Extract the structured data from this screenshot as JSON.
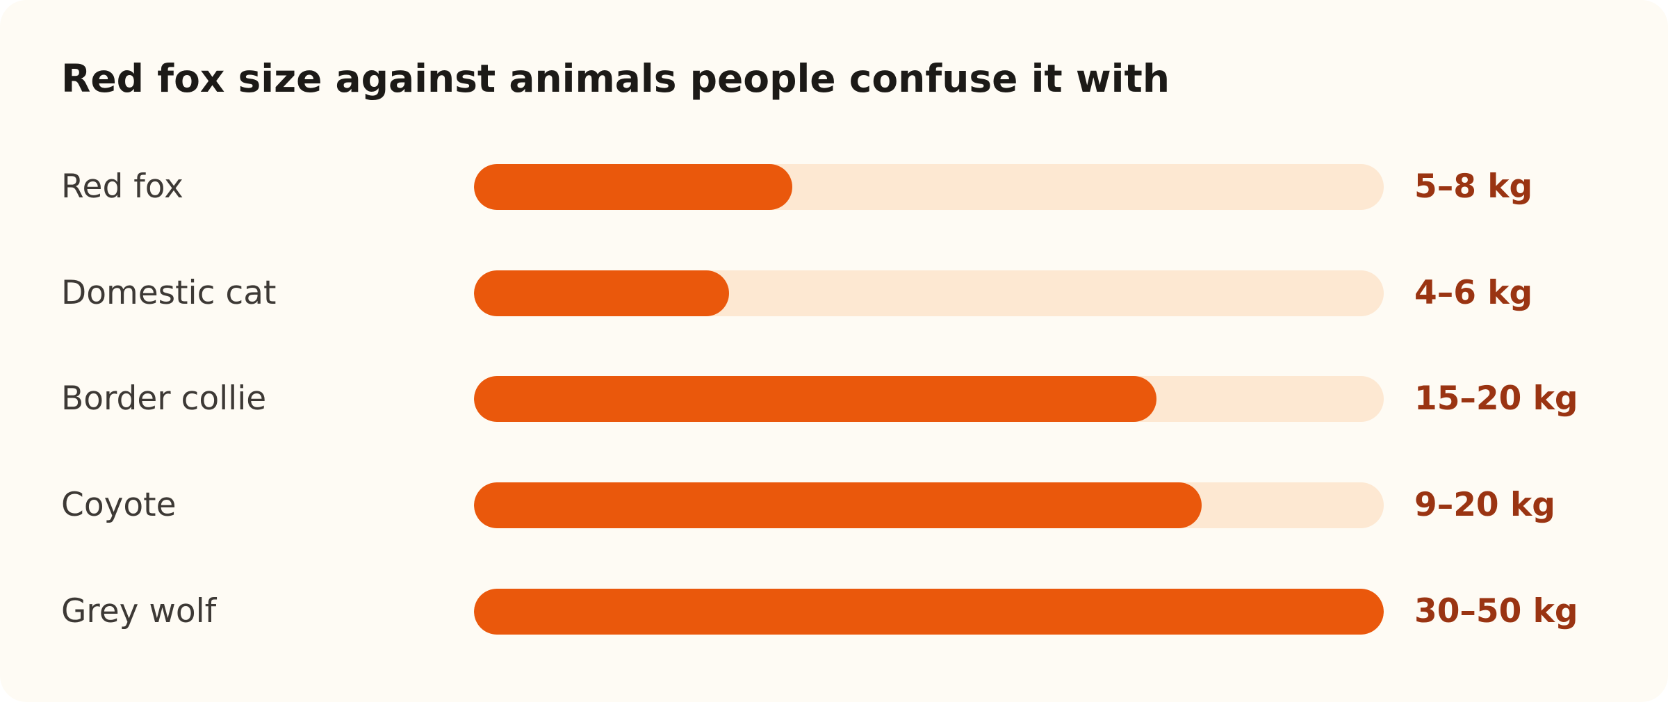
{
  "chart_data": {
    "type": "bar",
    "orientation": "horizontal",
    "title": "Red fox size against animals people confuse it with",
    "xlabel": "",
    "ylabel": "",
    "unit": "kg",
    "categories": [
      "Red fox",
      "Domestic cat",
      "Border collie",
      "Coyote",
      "Grey wolf"
    ],
    "value_labels": [
      "5–8 kg",
      "4–6 kg",
      "15–20 kg",
      "9–20 kg",
      "30–50 kg"
    ],
    "ranges": [
      [
        5,
        8
      ],
      [
        4,
        6
      ],
      [
        15,
        20
      ],
      [
        9,
        20
      ],
      [
        30,
        50
      ]
    ],
    "values": [
      8,
      6,
      20,
      20,
      50
    ],
    "fill_fractions": [
      0.35,
      0.28,
      0.75,
      0.8,
      1.0
    ],
    "grid": false,
    "legend": "none",
    "colors": {
      "background": "#fefbf4",
      "bar": "#ea580c",
      "track": "#fde8d2",
      "value_text": "#9a3412",
      "label_text": "#3d3935",
      "title_text": "#1c1a17"
    }
  }
}
